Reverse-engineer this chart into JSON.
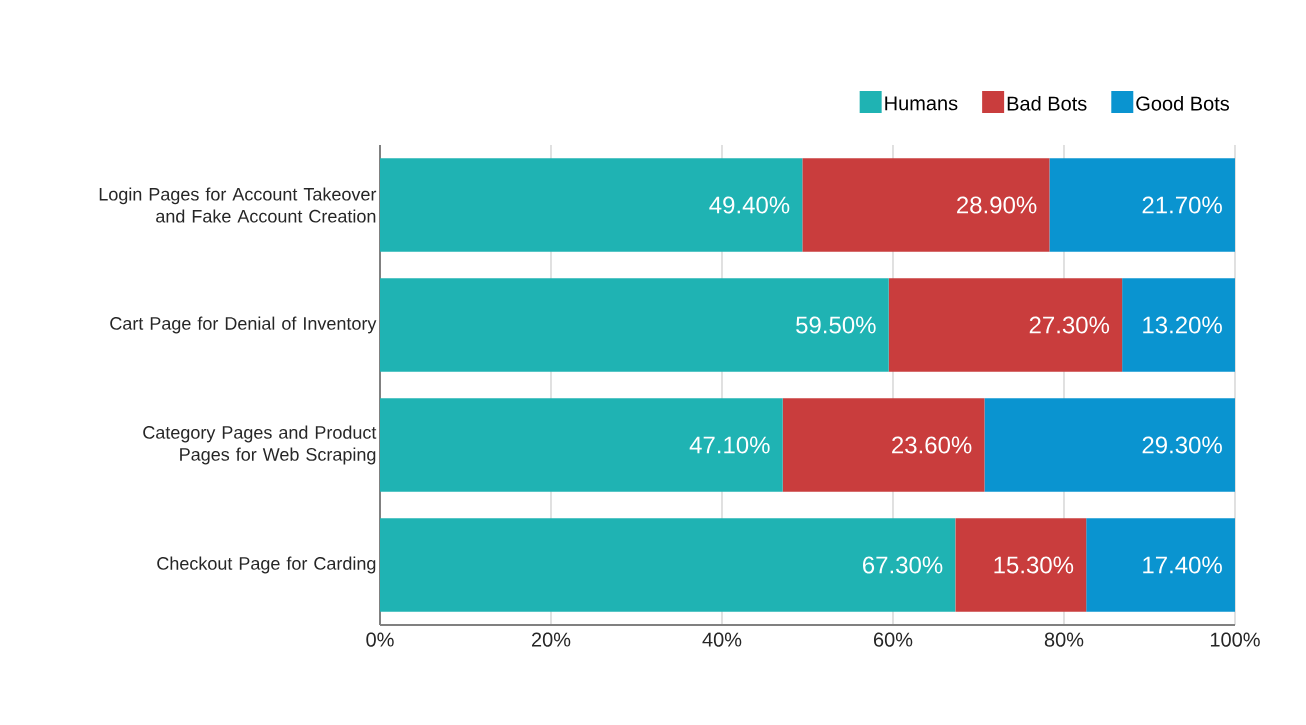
{
  "chart_data": {
    "type": "bar",
    "orientation": "horizontal",
    "stacked": true,
    "categories": [
      "Login Pages for Account Takeover and Fake Account Creation",
      "Cart Page for Denial of Inventory",
      "Category Pages and Product Pages for Web Scraping",
      "Checkout Page for Carding"
    ],
    "series": [
      {
        "name": "Humans",
        "color": "#1fb3b3",
        "values": [
          49.4,
          59.5,
          47.1,
          67.3
        ],
        "value_labels": [
          "49.40%",
          "59.50%",
          "47.10%",
          "67.30%"
        ]
      },
      {
        "name": "Bad Bots",
        "color": "#c93d3d",
        "values": [
          28.9,
          27.3,
          23.6,
          15.3
        ],
        "value_labels": [
          "28.90%",
          "27.30%",
          "23.60%",
          "15.30%"
        ]
      },
      {
        "name": "Good Bots",
        "color": "#0a94d0",
        "values": [
          21.7,
          13.2,
          29.3,
          17.4
        ],
        "value_labels": [
          "21.70%",
          "13.20%",
          "29.30%",
          "17.40%"
        ]
      }
    ],
    "xlim": [
      0,
      100
    ],
    "xticks": [
      {
        "value": 0,
        "label": "0%"
      },
      {
        "value": 20,
        "label": "20%"
      },
      {
        "value": 40,
        "label": "40%"
      },
      {
        "value": 60,
        "label": "60%"
      },
      {
        "value": 80,
        "label": "80%"
      },
      {
        "value": 100,
        "label": "100%"
      }
    ],
    "grid": "x",
    "legend": "top right"
  }
}
